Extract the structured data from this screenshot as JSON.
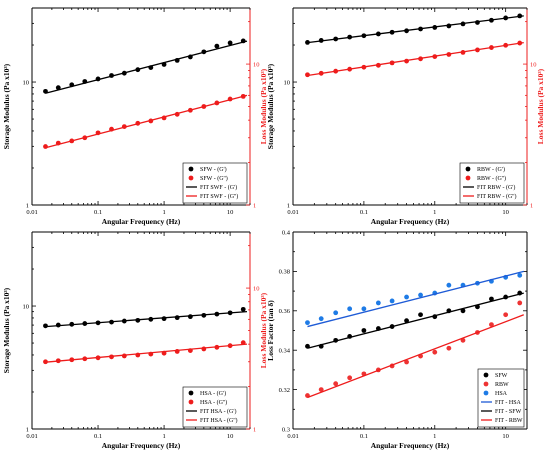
{
  "chart_data": [
    {
      "type": "scatter",
      "panel": "top-left",
      "xlabel": "Angular Frequency (Hz)",
      "ylabel_left": "Storage Modulus (Pa x10³)",
      "ylabel_right": "Loss Modulus (Pa x10³)",
      "x_scale": "log",
      "y_scale": "log",
      "xlim": [
        0.01,
        20
      ],
      "ylim_left": [
        1,
        40
      ],
      "ylim_right": [
        1,
        25
      ],
      "x_ticks": [
        "0.01",
        "0.1",
        "1",
        "10"
      ],
      "y_ticks_left": [
        "1",
        "10"
      ],
      "y_ticks_right": [
        "1",
        "10"
      ],
      "grid": false,
      "legend": {
        "position": "bottom-right",
        "entries": [
          "SFW - (G')",
          "SFW - (G'')",
          "FIT SWF - (G')",
          "FIT SWF - (G'')"
        ]
      },
      "series": [
        {
          "name": "SFW - (G')",
          "kind": "points",
          "axis": "left",
          "color": "#000000",
          "x": [
            0.016,
            0.025,
            0.04,
            0.063,
            0.1,
            0.16,
            0.25,
            0.4,
            0.63,
            1.0,
            1.58,
            2.5,
            4.0,
            6.3,
            10.0,
            15.8
          ],
          "y": [
            8.4,
            9.0,
            9.5,
            10.1,
            10.6,
            11.3,
            11.8,
            12.6,
            13.1,
            13.9,
            15.0,
            16.0,
            17.6,
            19.6,
            20.8,
            21.6
          ]
        },
        {
          "name": "SFW - (G'')",
          "kind": "points",
          "axis": "right",
          "color": "#ee1c1c",
          "x": [
            0.016,
            0.025,
            0.04,
            0.063,
            0.1,
            0.16,
            0.25,
            0.4,
            0.63,
            1.0,
            1.58,
            2.5,
            4.0,
            6.3,
            10.0,
            15.8
          ],
          "y": [
            2.6,
            2.75,
            2.85,
            3.0,
            3.25,
            3.45,
            3.6,
            3.8,
            3.95,
            4.15,
            4.4,
            4.7,
            5.0,
            5.3,
            5.65,
            5.9
          ]
        },
        {
          "name": "FIT SWF - (G')",
          "kind": "line",
          "axis": "left",
          "color": "#000000",
          "x": [
            0.016,
            18
          ],
          "y": [
            8.1,
            21.5
          ]
        },
        {
          "name": "FIT SWF - (G'')",
          "kind": "line",
          "axis": "right",
          "color": "#ee1c1c",
          "x": [
            0.016,
            18
          ],
          "y": [
            2.55,
            6.0
          ]
        }
      ]
    },
    {
      "type": "scatter",
      "panel": "top-right",
      "xlabel": "Angular Frequency (Hz)",
      "ylabel_left": "Storage Modulus (Pa x10³)",
      "ylabel_right": "Loss Modulus (Pa x10³)",
      "x_scale": "log",
      "y_scale": "log",
      "xlim": [
        0.01,
        20
      ],
      "ylim_left": [
        1,
        40
      ],
      "ylim_right": [
        1,
        25
      ],
      "x_ticks": [
        "0.01",
        "0.1",
        "1",
        "10"
      ],
      "y_ticks_left": [
        "1",
        "10"
      ],
      "y_ticks_right": [
        "1",
        "10"
      ],
      "grid": false,
      "legend": {
        "position": "bottom-right",
        "entries": [
          "RBW - (G')",
          "RBW - (G'')",
          "FIT RBW - (G')",
          "FIT RBW - (G'')"
        ]
      },
      "series": [
        {
          "name": "RBW - (G')",
          "kind": "points",
          "axis": "left",
          "color": "#000000",
          "x": [
            0.016,
            0.025,
            0.04,
            0.063,
            0.1,
            0.16,
            0.25,
            0.4,
            0.63,
            1.0,
            1.58,
            2.5,
            4.0,
            6.3,
            10.0,
            15.8
          ],
          "y": [
            21.0,
            21.8,
            22.4,
            23.2,
            23.8,
            24.6,
            25.4,
            26.1,
            27.0,
            27.8,
            28.6,
            29.7,
            30.5,
            31.8,
            33.2,
            34.5
          ]
        },
        {
          "name": "RBW - (G'')",
          "kind": "points",
          "axis": "right",
          "color": "#ee1c1c",
          "x": [
            0.016,
            0.025,
            0.04,
            0.063,
            0.1,
            0.16,
            0.25,
            0.4,
            0.63,
            1.0,
            1.58,
            2.5,
            4.0,
            6.3,
            10.0,
            15.8
          ],
          "y": [
            8.4,
            8.6,
            8.9,
            9.2,
            9.5,
            9.8,
            10.2,
            10.5,
            10.9,
            11.3,
            11.7,
            12.1,
            12.6,
            13.1,
            13.6,
            14.1
          ]
        },
        {
          "name": "FIT RBW - (G')",
          "kind": "line",
          "axis": "left",
          "color": "#000000",
          "x": [
            0.016,
            18
          ],
          "y": [
            20.9,
            34.5
          ]
        },
        {
          "name": "FIT RBW - (G'')",
          "kind": "line",
          "axis": "right",
          "color": "#ee1c1c",
          "x": [
            0.016,
            18
          ],
          "y": [
            8.3,
            14.2
          ]
        }
      ]
    },
    {
      "type": "scatter",
      "panel": "bottom-left",
      "xlabel": "Angular Frequency (Hz)",
      "ylabel_left": "Storage Modulus (Pa x10³)",
      "ylabel_right": "Loss Modulus (Pa x10³)",
      "x_scale": "log",
      "y_scale": "log",
      "xlim": [
        0.01,
        20
      ],
      "ylim_left": [
        1,
        40
      ],
      "ylim_right": [
        1,
        25
      ],
      "x_ticks": [
        "0.01",
        "0.1",
        "1",
        "10"
      ],
      "y_ticks_left": [
        "1",
        "10"
      ],
      "y_ticks_right": [
        "1",
        "10"
      ],
      "grid": false,
      "legend": {
        "position": "bottom-right",
        "entries": [
          "HSA - (G')",
          "HSA - (G'')",
          "FIT HSA - (G')",
          "FIT HSA - (G'')"
        ]
      },
      "series": [
        {
          "name": "HSA - (G')",
          "kind": "points",
          "axis": "left",
          "color": "#000000",
          "x": [
            0.016,
            0.025,
            0.04,
            0.063,
            0.1,
            0.16,
            0.25,
            0.4,
            0.63,
            1.0,
            1.58,
            2.5,
            4.0,
            6.3,
            10.0,
            15.8
          ],
          "y": [
            6.9,
            7.0,
            7.1,
            7.2,
            7.3,
            7.4,
            7.55,
            7.65,
            7.8,
            7.9,
            8.05,
            8.2,
            8.4,
            8.6,
            8.8,
            9.4
          ]
        },
        {
          "name": "HSA - (G'')",
          "kind": "points",
          "axis": "right",
          "color": "#ee1c1c",
          "x": [
            0.016,
            0.025,
            0.04,
            0.063,
            0.1,
            0.16,
            0.25,
            0.4,
            0.63,
            1.0,
            1.58,
            2.5,
            4.0,
            6.3,
            10.0,
            15.8
          ],
          "y": [
            3.0,
            3.05,
            3.1,
            3.15,
            3.2,
            3.25,
            3.3,
            3.35,
            3.4,
            3.45,
            3.55,
            3.6,
            3.7,
            3.8,
            3.9,
            4.1
          ]
        },
        {
          "name": "FIT HSA - (G')",
          "kind": "line",
          "axis": "left",
          "color": "#000000",
          "x": [
            0.016,
            18
          ],
          "y": [
            6.8,
            9.0
          ]
        },
        {
          "name": "FIT HSA - (G'')",
          "kind": "line",
          "axis": "right",
          "color": "#ee1c1c",
          "x": [
            0.016,
            18
          ],
          "y": [
            2.98,
            4.0
          ]
        }
      ]
    },
    {
      "type": "scatter",
      "panel": "bottom-right",
      "xlabel": "Angular Frequency (Hz)",
      "ylabel_left": "Loss Factor (tan δ)",
      "x_scale": "log",
      "y_scale": "linear",
      "xlim": [
        0.01,
        20
      ],
      "ylim_left": [
        0.3,
        0.4
      ],
      "x_ticks": [
        "0.01",
        "0.1",
        "1",
        "10"
      ],
      "y_ticks_left": [
        "0.3",
        "0.32",
        "0.34",
        "0.36",
        "0.38",
        "0.4"
      ],
      "grid": false,
      "legend": {
        "position": "bottom-right",
        "entries": [
          "SFW",
          "RBW",
          "HSA",
          "FIT - HSA",
          "FIT - SFW",
          "FIT - RBW"
        ]
      },
      "series": [
        {
          "name": "SFW",
          "kind": "points",
          "color": "#000000",
          "x": [
            0.016,
            0.025,
            0.04,
            0.063,
            0.1,
            0.16,
            0.25,
            0.4,
            0.63,
            1.0,
            1.58,
            2.5,
            4.0,
            6.3,
            10.0,
            15.8
          ],
          "y": [
            0.342,
            0.342,
            0.345,
            0.347,
            0.35,
            0.351,
            0.352,
            0.355,
            0.358,
            0.357,
            0.36,
            0.36,
            0.362,
            0.366,
            0.367,
            0.369
          ]
        },
        {
          "name": "RBW",
          "kind": "points",
          "color": "#ee3333",
          "x": [
            0.016,
            0.025,
            0.04,
            0.063,
            0.1,
            0.16,
            0.25,
            0.4,
            0.63,
            1.0,
            1.58,
            2.5,
            4.0,
            6.3,
            10.0,
            15.8
          ],
          "y": [
            0.317,
            0.32,
            0.323,
            0.326,
            0.328,
            0.33,
            0.332,
            0.334,
            0.337,
            0.339,
            0.341,
            0.345,
            0.349,
            0.353,
            0.358,
            0.364
          ]
        },
        {
          "name": "HSA",
          "kind": "points",
          "color": "#1e7be6",
          "x": [
            0.016,
            0.025,
            0.04,
            0.063,
            0.1,
            0.16,
            0.25,
            0.4,
            0.63,
            1.0,
            1.58,
            2.5,
            4.0,
            6.3,
            10.0,
            15.8
          ],
          "y": [
            0.354,
            0.356,
            0.359,
            0.361,
            0.361,
            0.364,
            0.365,
            0.367,
            0.368,
            0.369,
            0.373,
            0.373,
            0.374,
            0.375,
            0.377,
            0.378
          ]
        },
        {
          "name": "FIT - HSA",
          "kind": "line",
          "color": "#1e5bd6",
          "x": [
            0.016,
            18
          ],
          "y": [
            0.352,
            0.38
          ]
        },
        {
          "name": "FIT - SFW",
          "kind": "line",
          "color": "#000000",
          "x": [
            0.016,
            18
          ],
          "y": [
            0.341,
            0.369
          ]
        },
        {
          "name": "FIT - RBW",
          "kind": "line",
          "color": "#ee1c1c",
          "x": [
            0.016,
            18
          ],
          "y": [
            0.316,
            0.358
          ]
        }
      ]
    }
  ]
}
